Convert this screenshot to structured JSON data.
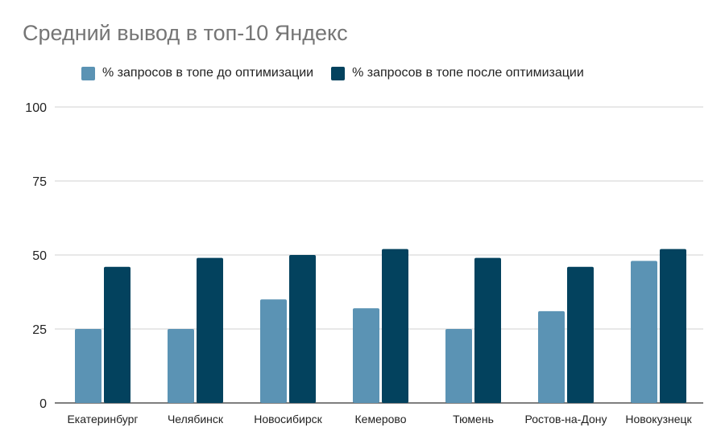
{
  "chart_data": {
    "type": "bar",
    "title": "Средний вывод в топ-10 Яндекс",
    "categories": [
      "Екатеринбург",
      "Челябинск",
      "Новосибирск",
      "Кемерово",
      "Тюмень",
      "Ростов-на-Дону",
      "Новокузнецк"
    ],
    "series": [
      {
        "name": "% запросов в топе до оптимизации",
        "color": "#5b93b4",
        "values": [
          25,
          25,
          35,
          32,
          25,
          31,
          48
        ]
      },
      {
        "name": "% запросов в топе после оптимизации",
        "color": "#03425e",
        "values": [
          46,
          49,
          50,
          52,
          49,
          46,
          52
        ]
      }
    ],
    "ylim": [
      0,
      100
    ],
    "yticks": [
      0,
      25,
      50,
      75,
      100
    ],
    "grid": true,
    "legend_position": "top"
  }
}
